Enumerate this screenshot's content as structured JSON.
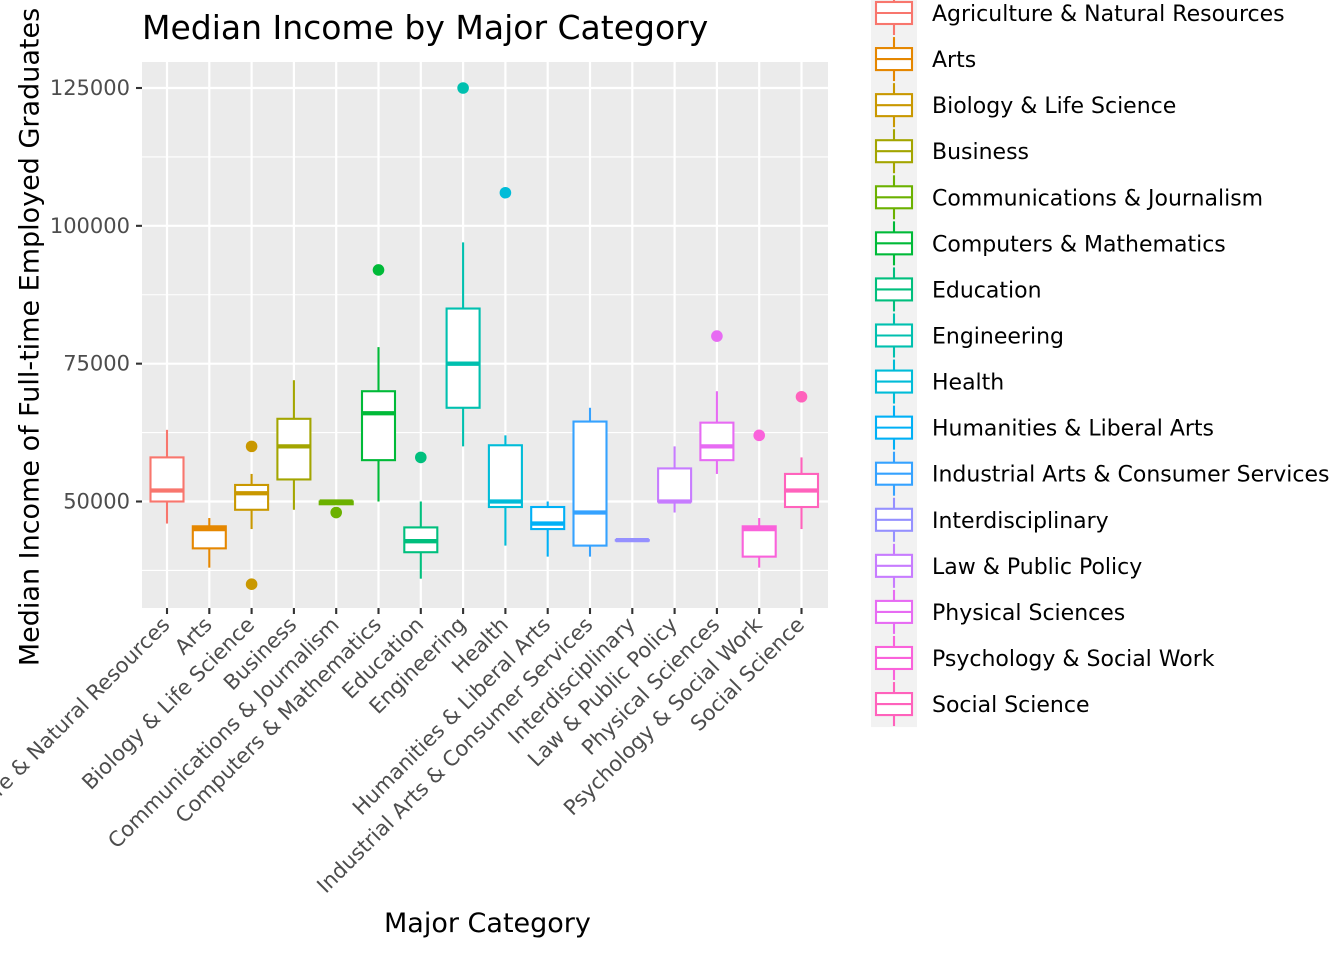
{
  "chart_data": {
    "type": "boxplot",
    "title": "Median Income by Major Category",
    "xlabel": "Major Category",
    "ylabel": "Median Income of Full-time Employed Graduates",
    "ylim": [
      30000,
      130000
    ],
    "yticks": [
      50000,
      75000,
      100000,
      125000
    ],
    "ytick_labels": [
      "50000",
      "75000",
      "100000",
      "125000"
    ],
    "grid": true,
    "legend_position": "right",
    "categories": [
      "Agriculture & Natural Resources",
      "Arts",
      "Biology & Life Science",
      "Business",
      "Communications & Journalism",
      "Computers & Mathematics",
      "Education",
      "Engineering",
      "Health",
      "Humanities & Liberal Arts",
      "Industrial Arts & Consumer Services",
      "Interdisciplinary",
      "Law & Public Policy",
      "Physical Sciences",
      "Psychology & Social Work",
      "Social Science"
    ],
    "series": [
      {
        "name": "Agriculture & Natural Resources",
        "color": "#F8766D",
        "whisker_low": 46000,
        "q1": 50000,
        "median": 52000,
        "q3": 58000,
        "whisker_high": 63000,
        "outliers": []
      },
      {
        "name": "Arts",
        "color": "#E58700",
        "whisker_low": 38000,
        "q1": 41500,
        "median": 45000,
        "q3": 45500,
        "whisker_high": 47000,
        "outliers": []
      },
      {
        "name": "Biology & Life Science",
        "color": "#C99800",
        "whisker_low": 45000,
        "q1": 48500,
        "median": 51500,
        "q3": 53000,
        "whisker_high": 55000,
        "outliers": [
          60000,
          35000
        ]
      },
      {
        "name": "Business",
        "color": "#A3A500",
        "whisker_low": 48500,
        "q1": 54000,
        "median": 60000,
        "q3": 65000,
        "whisker_high": 72000,
        "outliers": []
      },
      {
        "name": "Communications & Journalism",
        "color": "#6BB100",
        "whisker_low": 49500,
        "q1": 49500,
        "median": 50000,
        "q3": 50000,
        "whisker_high": 50000,
        "outliers": [
          48000
        ]
      },
      {
        "name": "Computers & Mathematics",
        "color": "#00BA38",
        "whisker_low": 50000,
        "q1": 57500,
        "median": 66000,
        "q3": 70000,
        "whisker_high": 78000,
        "outliers": [
          92000
        ]
      },
      {
        "name": "Education",
        "color": "#00BF7D",
        "whisker_low": 36000,
        "q1": 40800,
        "median": 42800,
        "q3": 45300,
        "whisker_high": 50000,
        "outliers": [
          58000
        ]
      },
      {
        "name": "Engineering",
        "color": "#00C0AF",
        "whisker_low": 60000,
        "q1": 67000,
        "median": 75000,
        "q3": 85000,
        "whisker_high": 97000,
        "outliers": [
          125000
        ]
      },
      {
        "name": "Health",
        "color": "#00BCD8",
        "whisker_low": 42000,
        "q1": 49000,
        "median": 50000,
        "q3": 60200,
        "whisker_high": 62000,
        "outliers": [
          106000
        ]
      },
      {
        "name": "Humanities & Liberal Arts",
        "color": "#00B0F6",
        "whisker_low": 40000,
        "q1": 45000,
        "median": 46000,
        "q3": 49000,
        "whisker_high": 50000,
        "outliers": []
      },
      {
        "name": "Industrial Arts & Consumer Services",
        "color": "#35A2FF",
        "whisker_low": 40000,
        "q1": 42000,
        "median": 48000,
        "q3": 64500,
        "whisker_high": 67000,
        "outliers": []
      },
      {
        "name": "Interdisciplinary",
        "color": "#9590FF",
        "whisker_low": 43000,
        "q1": 43000,
        "median": 43000,
        "q3": 43000,
        "whisker_high": 43000,
        "outliers": []
      },
      {
        "name": "Law & Public Policy",
        "color": "#C77CFF",
        "whisker_low": 48000,
        "q1": 50000,
        "median": 50000,
        "q3": 56000,
        "whisker_high": 60000,
        "outliers": []
      },
      {
        "name": "Physical Sciences",
        "color": "#E76BF3",
        "whisker_low": 55000,
        "q1": 57500,
        "median": 60000,
        "q3": 64300,
        "whisker_high": 70000,
        "outliers": [
          80000
        ]
      },
      {
        "name": "Psychology & Social Work",
        "color": "#FA62DB",
        "whisker_low": 38000,
        "q1": 40000,
        "median": 45000,
        "q3": 45500,
        "whisker_high": 47000,
        "outliers": [
          62000
        ]
      },
      {
        "name": "Social Science",
        "color": "#FF62BC",
        "whisker_low": 45000,
        "q1": 49000,
        "median": 52000,
        "q3": 55000,
        "whisker_high": 58000,
        "outliers": [
          69000
        ]
      }
    ]
  }
}
